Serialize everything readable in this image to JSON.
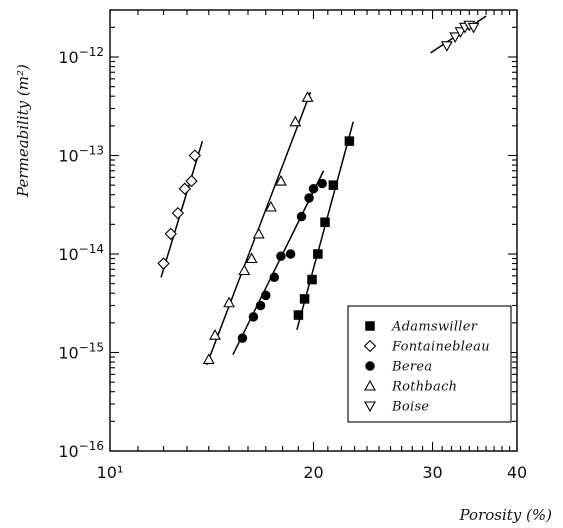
{
  "chart_data": {
    "type": "scatter",
    "title": "",
    "xlabel": "Porosity (%)",
    "ylabel": "Permeability (m²)",
    "x_scale": "log",
    "y_scale": "log",
    "xlim": [
      10,
      40
    ],
    "ylim": [
      1e-16,
      3e-12
    ],
    "x_ticks": [
      {
        "value": 10,
        "label": "10¹"
      },
      {
        "value": 20,
        "label": "20"
      },
      {
        "value": 30,
        "label": "30"
      },
      {
        "value": 40,
        "label": "40"
      }
    ],
    "y_ticks": [
      {
        "value": 1e-12,
        "base": "10",
        "exp": "−12"
      },
      {
        "value": 1e-13,
        "base": "10",
        "exp": "−13"
      },
      {
        "value": 1e-14,
        "base": "10",
        "exp": "−14"
      },
      {
        "value": 1e-15,
        "base": "10",
        "exp": "−15"
      },
      {
        "value": 1e-16,
        "base": "10",
        "exp": "−16"
      }
    ],
    "grid": false,
    "legend_position": "bottom-right",
    "series": [
      {
        "name": "Adamswiller",
        "marker": "square-filled",
        "points": [
          [
            19.0,
            2.4e-15
          ],
          [
            19.4,
            3.5e-15
          ],
          [
            19.9,
            5.5e-15
          ],
          [
            20.3,
            1e-14
          ],
          [
            20.8,
            2.1e-14
          ],
          [
            21.4,
            5e-14
          ],
          [
            22.6,
            1.4e-13
          ]
        ],
        "fit_line": [
          [
            18.9,
            1.7e-15
          ],
          [
            22.9,
            2.2e-13
          ]
        ]
      },
      {
        "name": "Fontainebleau",
        "marker": "diamond-open",
        "points": [
          [
            12.0,
            8e-15
          ],
          [
            12.3,
            1.6e-14
          ],
          [
            12.6,
            2.6e-14
          ],
          [
            12.9,
            4.6e-14
          ],
          [
            13.2,
            5.5e-14
          ],
          [
            13.35,
            1e-13
          ]
        ],
        "fit_line": [
          [
            11.9,
            5.8e-15
          ],
          [
            13.7,
            1.4e-13
          ]
        ]
      },
      {
        "name": "Berea",
        "marker": "circle-filled",
        "points": [
          [
            15.7,
            1.4e-15
          ],
          [
            16.3,
            2.3e-15
          ],
          [
            16.7,
            3e-15
          ],
          [
            17.0,
            3.8e-15
          ],
          [
            17.5,
            5.8e-15
          ],
          [
            17.9,
            9.5e-15
          ],
          [
            18.5,
            1e-14
          ],
          [
            19.2,
            2.4e-14
          ],
          [
            19.7,
            3.7e-14
          ],
          [
            20.0,
            4.6e-14
          ],
          [
            20.6,
            5.2e-14
          ]
        ],
        "fit_line": [
          [
            15.2,
            9.5e-16
          ],
          [
            20.7,
            7e-14
          ]
        ]
      },
      {
        "name": "Rothbach",
        "marker": "triangle-up-open",
        "points": [
          [
            14.0,
            8.5e-16
          ],
          [
            14.3,
            1.5e-15
          ],
          [
            15.0,
            3.2e-15
          ],
          [
            15.8,
            6.8e-15
          ],
          [
            16.2,
            9e-15
          ],
          [
            16.6,
            1.6e-14
          ],
          [
            17.3,
            3e-14
          ],
          [
            17.9,
            5.5e-14
          ],
          [
            18.8,
            2.2e-13
          ],
          [
            19.6,
            3.9e-13
          ]
        ],
        "fit_line": [
          [
            13.9,
            7.5e-16
          ],
          [
            19.8,
            4.4e-13
          ]
        ]
      },
      {
        "name": "Boise",
        "marker": "triangle-down-open",
        "points": [
          [
            31.5,
            1.3e-12
          ],
          [
            32.4,
            1.6e-12
          ],
          [
            33.0,
            1.8e-12
          ],
          [
            33.5,
            2e-12
          ],
          [
            34.0,
            2.1e-12
          ],
          [
            34.5,
            2e-12
          ]
        ],
        "fit_line": [
          [
            29.8,
            1.1e-12
          ],
          [
            36.0,
            2.6e-12
          ]
        ]
      }
    ]
  }
}
